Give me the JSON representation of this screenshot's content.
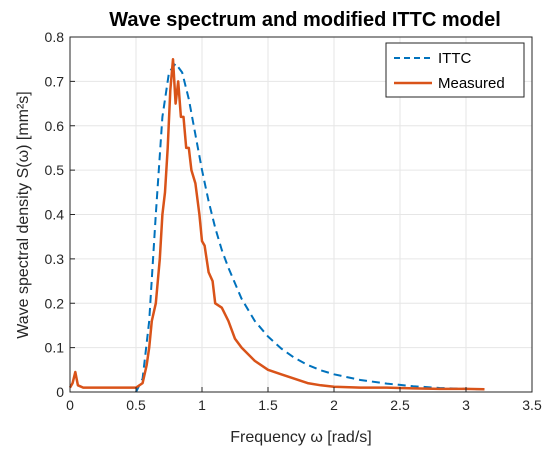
{
  "chart_data": {
    "type": "line",
    "title": "Wave spectrum and modified ITTC model",
    "xlabel": "Frequency ω [rad/s]",
    "ylabel": "Wave spectral density S(ω) [mm²s]",
    "xlim": [
      0,
      3.5
    ],
    "ylim": [
      0,
      0.8
    ],
    "x_ticks": [
      "0",
      "0.5",
      "1",
      "1.5",
      "2",
      "2.5",
      "3",
      "3.5"
    ],
    "y_ticks": [
      "0",
      "0.1",
      "0.2",
      "0.3",
      "0.4",
      "0.5",
      "0.6",
      "0.7",
      "0.8"
    ],
    "grid": true,
    "legend_position": "top-right",
    "series": [
      {
        "name": "ITTC",
        "style": "dashed",
        "color": "#0072BD",
        "x": [
          0.5,
          0.55,
          0.6,
          0.65,
          0.7,
          0.75,
          0.8,
          0.85,
          0.9,
          0.95,
          1.0,
          1.05,
          1.1,
          1.15,
          1.2,
          1.3,
          1.4,
          1.5,
          1.6,
          1.7,
          1.8,
          1.9,
          2.0,
          2.2,
          2.4,
          2.6,
          2.8,
          3.0,
          3.14
        ],
        "y": [
          0.0,
          0.03,
          0.16,
          0.4,
          0.62,
          0.72,
          0.74,
          0.72,
          0.66,
          0.58,
          0.5,
          0.43,
          0.37,
          0.32,
          0.28,
          0.21,
          0.16,
          0.125,
          0.098,
          0.077,
          0.061,
          0.049,
          0.04,
          0.027,
          0.019,
          0.013,
          0.009,
          0.007,
          0.006
        ]
      },
      {
        "name": "Measured",
        "style": "solid",
        "color": "#D95319",
        "x": [
          0.0,
          0.02,
          0.04,
          0.06,
          0.1,
          0.2,
          0.3,
          0.4,
          0.5,
          0.55,
          0.58,
          0.6,
          0.62,
          0.65,
          0.68,
          0.7,
          0.72,
          0.74,
          0.76,
          0.78,
          0.8,
          0.82,
          0.84,
          0.86,
          0.88,
          0.9,
          0.92,
          0.95,
          0.98,
          1.0,
          1.02,
          1.05,
          1.08,
          1.1,
          1.15,
          1.2,
          1.25,
          1.3,
          1.4,
          1.5,
          1.6,
          1.7,
          1.8,
          1.9,
          2.0,
          2.2,
          2.4,
          2.6,
          2.8,
          3.0,
          3.14
        ],
        "y": [
          0.01,
          0.02,
          0.045,
          0.015,
          0.01,
          0.01,
          0.01,
          0.01,
          0.01,
          0.02,
          0.06,
          0.1,
          0.16,
          0.2,
          0.3,
          0.4,
          0.45,
          0.55,
          0.68,
          0.75,
          0.65,
          0.7,
          0.62,
          0.62,
          0.55,
          0.55,
          0.5,
          0.47,
          0.4,
          0.34,
          0.33,
          0.27,
          0.25,
          0.2,
          0.19,
          0.16,
          0.12,
          0.1,
          0.07,
          0.05,
          0.04,
          0.03,
          0.02,
          0.015,
          0.012,
          0.01,
          0.01,
          0.008,
          0.007,
          0.007,
          0.006
        ]
      }
    ]
  }
}
